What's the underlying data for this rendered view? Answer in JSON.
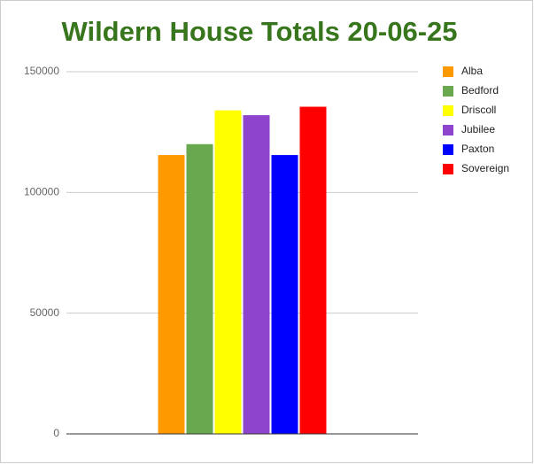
{
  "chart_data": {
    "type": "bar",
    "title": "Wildern House Totals 20-06-25",
    "categories": [
      null
    ],
    "series": [
      {
        "name": "Alba",
        "color": "#ff9900",
        "values": [
          115500
        ]
      },
      {
        "name": "Bedford",
        "color": "#6aa84f",
        "values": [
          120000
        ]
      },
      {
        "name": "Driscoll",
        "color": "#ffff00",
        "values": [
          134000
        ]
      },
      {
        "name": "Jubilee",
        "color": "#8e44cc",
        "values": [
          132000
        ]
      },
      {
        "name": "Paxton",
        "color": "#0000ff",
        "values": [
          115500
        ]
      },
      {
        "name": "Sovereign",
        "color": "#ff0000",
        "values": [
          135500
        ]
      }
    ],
    "ylim": [
      0,
      150000
    ],
    "yticks": [
      0,
      50000,
      100000,
      150000
    ],
    "grid": true,
    "legend": "right"
  }
}
